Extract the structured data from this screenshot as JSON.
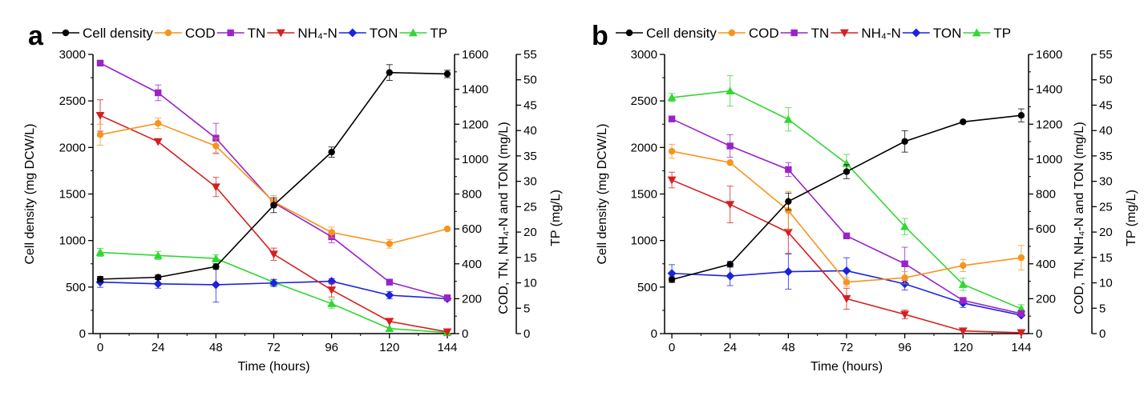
{
  "chart_data": [
    {
      "type": "line",
      "panel_label": "a",
      "x": [
        0,
        24,
        48,
        72,
        96,
        120,
        144
      ],
      "xlabel": "Time (hours)",
      "xlim": [
        -3,
        147
      ],
      "xticks": [
        "0",
        "24",
        "48",
        "72",
        "96",
        "120",
        "144"
      ],
      "axes": {
        "left": {
          "label": "Cell density (mg DCW/L)",
          "lim": [
            0,
            3000
          ],
          "ticks": [
            "0",
            "500",
            "1000",
            "1500",
            "2000",
            "2500",
            "3000"
          ]
        },
        "right1": {
          "label": "COD, TN, NH₄-N and TON (mg/L)",
          "lim": [
            0,
            1600
          ],
          "ticks": [
            "0",
            "200",
            "400",
            "600",
            "800",
            "1000",
            "1200",
            "1400",
            "1600"
          ]
        },
        "right2": {
          "label": "TP (mg/L)",
          "lim": [
            0,
            55
          ],
          "ticks": [
            "0",
            "5",
            "10",
            "15",
            "20",
            "25",
            "30",
            "35",
            "40",
            "45",
            "50",
            "55"
          ]
        }
      },
      "series": [
        {
          "name": "Cell density",
          "axis": "left",
          "color": "#000000",
          "marker": "circle",
          "values": [
            585,
            605,
            720,
            1380,
            1950,
            2805,
            2790
          ],
          "errors": [
            30,
            25,
            30,
            80,
            55,
            85,
            40
          ]
        },
        {
          "name": "COD",
          "axis": "right1",
          "color": "#F7941D",
          "marker": "circle",
          "values": [
            1140,
            1205,
            1075,
            755,
            580,
            515,
            600
          ],
          "errors": [
            60,
            30,
            45,
            35,
            30,
            25,
            0
          ]
        },
        {
          "name": "TN",
          "axis": "right1",
          "color": "#9A23C8",
          "marker": "square",
          "values": [
            1550,
            1380,
            1120,
            750,
            555,
            295,
            205
          ],
          "errors": [
            0,
            45,
            85,
            20,
            35,
            0,
            0
          ]
        },
        {
          "name": "NH₄-N",
          "axis": "right1",
          "color": "#D52020",
          "marker": "triangle-down",
          "values": [
            1250,
            1100,
            840,
            455,
            250,
            70,
            10
          ],
          "errors": [
            90,
            0,
            55,
            35,
            40,
            0,
            0
          ]
        },
        {
          "name": "TON",
          "axis": "right1",
          "color": "#1C22E0",
          "marker": "diamond",
          "values": [
            295,
            285,
            280,
            290,
            300,
            220,
            200
          ],
          "errors": [
            30,
            25,
            100,
            20,
            15,
            20,
            0
          ]
        },
        {
          "name": "TP",
          "axis": "right2",
          "color": "#33D633",
          "marker": "triangle-up",
          "values": [
            16.0,
            15.4,
            14.8,
            10.1,
            5.9,
            1.0,
            0.2
          ],
          "errors": [
            0.8,
            0.8,
            0.7,
            0.6,
            0.9,
            0,
            0
          ]
        }
      ]
    },
    {
      "type": "line",
      "panel_label": "b",
      "x": [
        0,
        24,
        48,
        72,
        96,
        120,
        144
      ],
      "xlabel": "Time (hours)",
      "xlim": [
        -3,
        147
      ],
      "xticks": [
        "0",
        "24",
        "48",
        "72",
        "96",
        "120",
        "144"
      ],
      "axes": {
        "left": {
          "label": "Cell density (mg DCW/L)",
          "lim": [
            0,
            3000
          ],
          "ticks": [
            "0",
            "500",
            "1000",
            "1500",
            "2000",
            "2500",
            "3000"
          ]
        },
        "right1": {
          "label": "COD, TN, NH₄-N and TON (mg/L)",
          "lim": [
            0,
            1600
          ],
          "ticks": [
            "0",
            "200",
            "400",
            "600",
            "800",
            "1000",
            "1200",
            "1400",
            "1600"
          ]
        },
        "right2": {
          "label": "TP (mg/L)",
          "lim": [
            0,
            55
          ],
          "ticks": [
            "0",
            "5",
            "10",
            "15",
            "20",
            "25",
            "30",
            "35",
            "40",
            "45",
            "50",
            "55"
          ]
        }
      },
      "series": [
        {
          "name": "Cell density",
          "axis": "left",
          "color": "#000000",
          "marker": "circle",
          "values": [
            580,
            745,
            1420,
            1740,
            2065,
            2275,
            2345
          ],
          "errors": [
            30,
            30,
            90,
            75,
            115,
            0,
            70
          ]
        },
        {
          "name": "COD",
          "axis": "right1",
          "color": "#F7941D",
          "marker": "circle",
          "values": [
            1045,
            980,
            705,
            295,
            320,
            390,
            435
          ],
          "errors": [
            40,
            0,
            110,
            25,
            35,
            35,
            70
          ]
        },
        {
          "name": "TN",
          "axis": "right1",
          "color": "#9A23C8",
          "marker": "square",
          "values": [
            1230,
            1075,
            940,
            560,
            400,
            190,
            115
          ],
          "errors": [
            0,
            65,
            40,
            0,
            95,
            0,
            0
          ]
        },
        {
          "name": "NH₄-N",
          "axis": "right1",
          "color": "#D52020",
          "marker": "triangle-down",
          "values": [
            880,
            740,
            580,
            200,
            110,
            15,
            5
          ],
          "errors": [
            45,
            105,
            120,
            60,
            25,
            0,
            0
          ]
        },
        {
          "name": "TON",
          "axis": "right1",
          "color": "#1C22E0",
          "marker": "diamond",
          "values": [
            345,
            330,
            355,
            360,
            285,
            175,
            105
          ],
          "errors": [
            50,
            55,
            100,
            75,
            35,
            25,
            0
          ]
        },
        {
          "name": "TP",
          "axis": "right2",
          "color": "#33D633",
          "marker": "triangle-up",
          "values": [
            46.5,
            47.8,
            42.2,
            33.5,
            21.1,
            9.7,
            4.9
          ],
          "errors": [
            0.8,
            3.0,
            2.3,
            1.8,
            1.6,
            1.2,
            0.8
          ]
        }
      ]
    }
  ]
}
